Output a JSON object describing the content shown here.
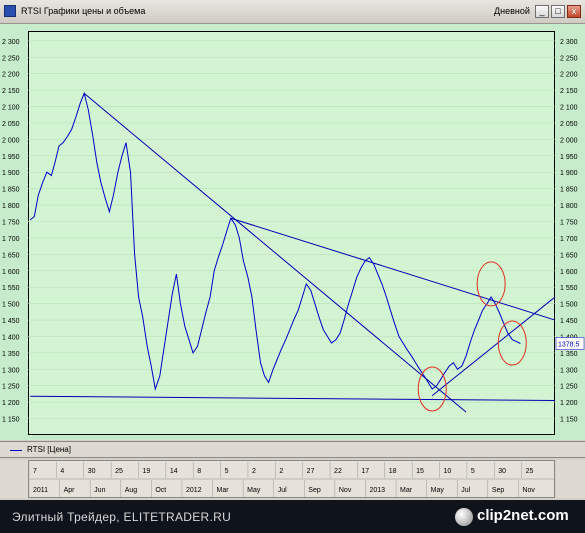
{
  "window": {
    "title": "RTSI Графики цены и объема",
    "interval": "Дневной",
    "minimize": "_",
    "maximize": "□",
    "close": "x"
  },
  "legend": {
    "label": "RTSI [Цена]"
  },
  "price_label": "1378,5",
  "time_axis": {
    "days": [
      "7",
      "4",
      "30",
      "25",
      "19",
      "14",
      "8",
      "5",
      "2",
      "2",
      "27",
      "22",
      "17",
      "18",
      "15",
      "10",
      "5",
      "30",
      "25"
    ],
    "months": [
      "2011",
      "Apr",
      "Jun",
      "Aug",
      "Oct",
      "2012",
      "Mar",
      "May",
      "Jul",
      "Sep",
      "Nov",
      "2013",
      "Mar",
      "May",
      "Jul",
      "Sep",
      "Nov"
    ]
  },
  "footer": {
    "text": "Элитный Трейдер, ELITETRADER.RU",
    "logo_text": "clip2net.com",
    "logo_icon": "clip2net-logo-icon"
  },
  "colors": {
    "price": "#0000c8",
    "trend": "#0000b4",
    "highlight": "#e03020",
    "plot_bg": "#d2f4d2",
    "axis_bg": "#c6eccc"
  },
  "chart_data": {
    "type": "line",
    "title": "RTSI Графики цены и объема",
    "ylabel": "",
    "xlabel": "",
    "ylim": [
      1100,
      2330
    ],
    "y_ticks": [
      1150,
      1200,
      1250,
      1300,
      1350,
      1400,
      1450,
      1500,
      1550,
      1600,
      1650,
      1700,
      1750,
      1800,
      1850,
      1900,
      1950,
      2000,
      2050,
      2100,
      2150,
      2200,
      2250,
      2300
    ],
    "y_tick_labels": [
      "1 150",
      "1 200",
      "1 250",
      "1 300",
      "1 350",
      "1 400",
      "1 450",
      "1 500",
      "1 550",
      "1 600",
      "1 650",
      "1 700",
      "1 750",
      "1 800",
      "1 850",
      "1 900",
      "1 950",
      "2 000",
      "2 050",
      "2 100",
      "2 150",
      "2 200",
      "2 250",
      "2 300"
    ],
    "grid": true,
    "last_value": 1378.5,
    "series": [
      {
        "name": "RTSI [Цена]",
        "x": [
          "2010-12-20",
          "2010-12-29",
          "2011-01-07",
          "2011-01-17",
          "2011-01-26",
          "2011-02-05",
          "2011-02-13",
          "2011-02-22",
          "2011-03-03",
          "2011-03-13",
          "2011-03-22",
          "2011-04-01",
          "2011-04-10",
          "2011-04-19",
          "2011-04-28",
          "2011-05-08",
          "2011-05-17",
          "2011-05-26",
          "2011-06-05",
          "2011-06-14",
          "2011-06-23",
          "2011-07-03",
          "2011-07-12",
          "2011-07-21",
          "2011-07-31",
          "2011-08-09",
          "2011-08-18",
          "2011-08-27",
          "2011-09-06",
          "2011-09-15",
          "2011-09-24",
          "2011-10-04",
          "2011-10-13",
          "2011-10-22",
          "2011-11-01",
          "2011-11-10",
          "2011-11-19",
          "2011-11-29",
          "2011-12-08",
          "2011-12-17",
          "2011-12-27",
          "2012-01-05",
          "2012-01-14",
          "2012-01-24",
          "2012-02-02",
          "2012-02-11",
          "2012-02-21",
          "2012-03-01",
          "2012-03-10",
          "2012-03-20",
          "2012-03-29",
          "2012-04-07",
          "2012-04-17",
          "2012-04-26",
          "2012-05-05",
          "2012-05-15",
          "2012-05-24",
          "2012-06-02",
          "2012-06-12",
          "2012-06-21",
          "2012-06-30",
          "2012-07-10",
          "2012-07-19",
          "2012-07-28",
          "2012-08-07",
          "2012-08-16",
          "2012-08-25",
          "2012-09-04",
          "2012-09-13",
          "2012-09-22",
          "2012-10-02",
          "2012-10-11",
          "2012-10-20",
          "2012-10-30",
          "2012-11-08",
          "2012-11-17",
          "2012-11-27",
          "2012-12-06",
          "2012-12-15",
          "2012-12-25",
          "2013-01-03",
          "2013-01-12",
          "2013-01-22",
          "2013-01-31",
          "2013-02-09",
          "2013-02-19",
          "2013-02-28",
          "2013-03-09",
          "2013-03-19",
          "2013-03-28",
          "2013-04-06",
          "2013-04-16",
          "2013-04-25",
          "2013-05-04",
          "2013-05-14",
          "2013-05-23",
          "2013-06-01",
          "2013-06-11",
          "2013-06-20",
          "2013-06-29",
          "2013-07-09",
          "2013-07-18",
          "2013-07-27",
          "2013-08-06",
          "2013-08-15",
          "2013-08-24",
          "2013-09-03",
          "2013-09-12",
          "2013-09-21",
          "2013-10-01",
          "2013-10-10",
          "2013-10-19",
          "2013-10-29",
          "2013-11-07",
          "2013-11-16",
          "2013-11-26",
          "2013-12-05",
          "2013-12-14"
        ],
        "values": [
          1755,
          1765,
          1830,
          1870,
          1900,
          1890,
          1930,
          1980,
          1990,
          2010,
          2030,
          2070,
          2110,
          2140,
          2090,
          2010,
          1930,
          1870,
          1820,
          1780,
          1830,
          1900,
          1950,
          1990,
          1900,
          1650,
          1520,
          1460,
          1370,
          1310,
          1240,
          1280,
          1360,
          1440,
          1530,
          1590,
          1500,
          1430,
          1390,
          1350,
          1370,
          1420,
          1470,
          1520,
          1600,
          1640,
          1680,
          1720,
          1760,
          1740,
          1700,
          1630,
          1580,
          1520,
          1420,
          1320,
          1280,
          1260,
          1300,
          1330,
          1360,
          1390,
          1420,
          1450,
          1480,
          1520,
          1560,
          1540,
          1500,
          1460,
          1420,
          1400,
          1380,
          1390,
          1410,
          1450,
          1500,
          1540,
          1580,
          1610,
          1630,
          1640,
          1620,
          1590,
          1560,
          1520,
          1480,
          1440,
          1400,
          1380,
          1360,
          1340,
          1320,
          1300,
          1280,
          1260,
          1240,
          1250,
          1270,
          1290,
          1310,
          1320,
          1300,
          1310,
          1340,
          1380,
          1420,
          1450,
          1480,
          1500,
          1520,
          1500,
          1470,
          1440,
          1410,
          1390,
          1385,
          1378.5
        ]
      }
    ],
    "annotations": [
      {
        "type": "trendline",
        "from": {
          "x": "2011-04-19",
          "y": 2140
        },
        "to": {
          "x": "2013-08-15",
          "y": 1170
        }
      },
      {
        "type": "trendline",
        "from": {
          "x": "2012-03-10",
          "y": 1760
        },
        "to": {
          "x": "2014-03-01",
          "y": 1450
        }
      },
      {
        "type": "trendline",
        "from": {
          "x": "2013-06-01",
          "y": 1220
        },
        "to": {
          "x": "2014-03-01",
          "y": 1520
        }
      },
      {
        "type": "support",
        "from": {
          "x": "2010-12-20",
          "y": 1218
        },
        "to": {
          "x": "2014-03-01",
          "y": 1205
        }
      },
      {
        "type": "circle",
        "at": {
          "x": "2013-06-01",
          "y": 1240
        }
      },
      {
        "type": "circle",
        "at": {
          "x": "2013-10-10",
          "y": 1560
        }
      },
      {
        "type": "circle",
        "at": {
          "x": "2013-11-26",
          "y": 1380
        }
      }
    ]
  }
}
